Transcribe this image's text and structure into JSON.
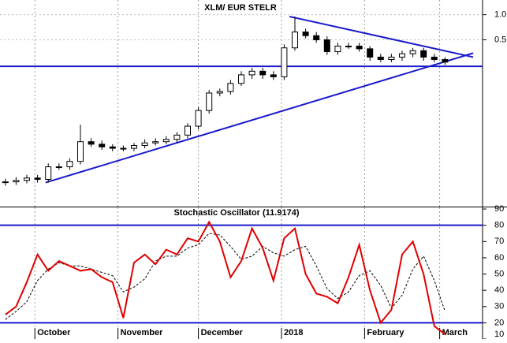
{
  "chart_data": [
    {
      "type": "candlestick",
      "title": "XLM/ EUR STELR",
      "x": [
        2,
        6,
        10,
        14,
        18,
        22,
        26,
        30,
        34,
        38,
        42,
        46,
        50,
        54,
        58,
        62,
        66,
        70,
        74,
        78,
        82,
        86,
        90,
        94,
        98,
        102,
        106,
        110,
        114,
        118,
        122,
        126,
        130,
        134,
        138,
        142,
        146,
        150,
        154,
        158,
        162,
        166
      ],
      "open": [
        0.0097,
        0.0099,
        0.0103,
        0.011,
        0.0106,
        0.015,
        0.015,
        0.0174,
        0.03,
        0.028,
        0.026,
        0.025,
        0.025,
        0.027,
        0.029,
        0.03,
        0.032,
        0.036,
        0.046,
        0.071,
        0.115,
        0.12,
        0.15,
        0.19,
        0.21,
        0.19,
        0.18,
        0.4,
        0.62,
        0.56,
        0.5,
        0.36,
        0.42,
        0.42,
        0.39,
        0.31,
        0.29,
        0.31,
        0.34,
        0.37,
        0.31,
        0.29
      ],
      "high": [
        0.0108,
        0.0113,
        0.012,
        0.012,
        0.0165,
        0.0165,
        0.019,
        0.048,
        0.033,
        0.031,
        0.028,
        0.027,
        0.029,
        0.032,
        0.033,
        0.035,
        0.039,
        0.05,
        0.078,
        0.125,
        0.13,
        0.165,
        0.21,
        0.23,
        0.23,
        0.21,
        0.44,
        0.95,
        0.68,
        0.62,
        0.55,
        0.46,
        0.46,
        0.46,
        0.42,
        0.34,
        0.34,
        0.37,
        0.4,
        0.4,
        0.34,
        0.31
      ],
      "low": [
        0.0089,
        0.0091,
        0.0095,
        0.0097,
        0.0097,
        0.0138,
        0.0138,
        0.016,
        0.026,
        0.024,
        0.023,
        0.023,
        0.023,
        0.025,
        0.027,
        0.028,
        0.029,
        0.033,
        0.042,
        0.065,
        0.105,
        0.11,
        0.14,
        0.17,
        0.17,
        0.165,
        0.165,
        0.37,
        0.52,
        0.46,
        0.33,
        0.33,
        0.39,
        0.36,
        0.28,
        0.27,
        0.27,
        0.28,
        0.31,
        0.28,
        0.27,
        0.25
      ],
      "close": [
        0.0099,
        0.0103,
        0.011,
        0.0106,
        0.015,
        0.015,
        0.0174,
        0.03,
        0.028,
        0.026,
        0.025,
        0.025,
        0.027,
        0.029,
        0.03,
        0.032,
        0.036,
        0.046,
        0.071,
        0.115,
        0.12,
        0.15,
        0.19,
        0.21,
        0.19,
        0.18,
        0.4,
        0.62,
        0.56,
        0.5,
        0.36,
        0.42,
        0.42,
        0.39,
        0.31,
        0.29,
        0.31,
        0.34,
        0.37,
        0.31,
        0.29,
        0.27
      ],
      "xlim": [
        0,
        180
      ],
      "ylim": [
        0.005,
        1.5
      ],
      "log": true,
      "grid": true,
      "yticks": [
        {
          "value": 1,
          "label": "1.0"
        },
        0.5
      ],
      "color": "#000000",
      "line_color": "#1a1acc",
      "lines": [
        {
          "x": [
            0,
            180
          ],
          "y": [
            0.24,
            0.24
          ]
        },
        {
          "x": [
            108,
            176.5
          ],
          "y": [
            0.95,
            0.31
          ]
        },
        {
          "x": [
            17,
            176.5
          ],
          "y": [
            0.0097,
            0.346
          ]
        }
      ]
    },
    {
      "type": "line",
      "title": "Stochastic Oscillator (11.9174)",
      "x": [
        2,
        6,
        10,
        14,
        18,
        22,
        26,
        30,
        34,
        38,
        42,
        46,
        50,
        54,
        58,
        62,
        66,
        70,
        74,
        78,
        82,
        86,
        90,
        94,
        98,
        102,
        106,
        110,
        114,
        118,
        122,
        126,
        130,
        134,
        138,
        142,
        146,
        150,
        154,
        158,
        162,
        166
      ],
      "series": [
        {
          "color": "#e00000",
          "dash": false,
          "values": [
            25,
            30,
            45,
            62,
            52,
            58,
            55,
            52,
            53,
            48,
            45,
            23,
            57,
            62,
            56,
            65,
            62,
            72,
            70,
            82,
            70,
            48,
            58,
            78,
            66,
            46,
            72,
            78,
            50,
            38,
            36,
            32,
            48,
            68,
            40,
            20,
            28,
            62,
            70,
            50,
            18,
            13
          ]
        },
        {
          "color": "#000000",
          "dash": true,
          "values": [
            22,
            27,
            33,
            46,
            53,
            57,
            55,
            55,
            53,
            51,
            49,
            39,
            42,
            47,
            58,
            61,
            61,
            66,
            68,
            75,
            74,
            67,
            59,
            61,
            67,
            63,
            61,
            65,
            67,
            55,
            41,
            35,
            39,
            49,
            52,
            43,
            29,
            37,
            53,
            61,
            46,
            27
          ]
        }
      ],
      "xlim": [
        0,
        180
      ],
      "ylim": [
        10,
        91
      ],
      "yticks": [
        10,
        20,
        30,
        40,
        50,
        60,
        70,
        80,
        90
      ],
      "hlines": [
        80,
        20
      ],
      "line_color": "#1a1acc",
      "grid": true,
      "xticks": [
        {
          "value": 13,
          "label": "October"
        },
        {
          "value": 44,
          "label": "November"
        },
        {
          "value": 74,
          "label": "December"
        },
        {
          "value": 105,
          "label": "2018"
        },
        {
          "value": 136,
          "label": "February"
        },
        {
          "value": 164,
          "label": "March"
        }
      ]
    }
  ]
}
